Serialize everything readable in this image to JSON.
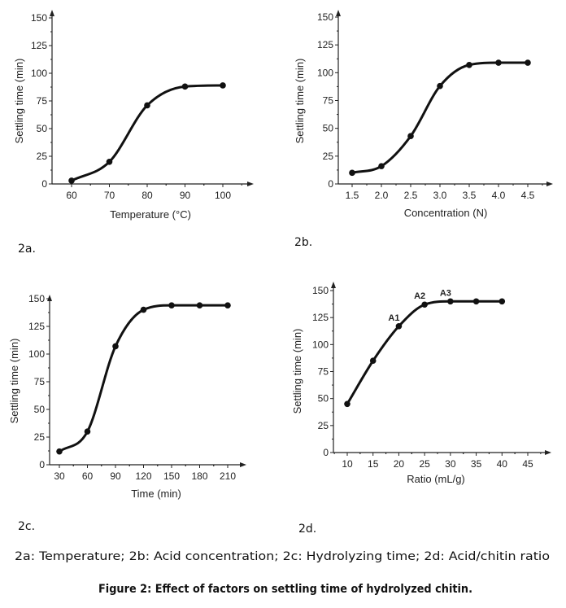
{
  "chart_data": [
    {
      "type": "line",
      "panel_label": "2a.",
      "xlabel": "Temperature (°C)",
      "ylabel": "Settling time (min)",
      "x": [
        60,
        70,
        80,
        90,
        100
      ],
      "values": [
        3,
        20,
        71,
        88,
        89
      ],
      "xticks": [
        "60",
        "70",
        "80",
        "90",
        "100"
      ],
      "yticks": [
        "0",
        "25",
        "50",
        "75",
        "100",
        "125",
        "150"
      ],
      "xlim": [
        55,
        107
      ],
      "ylim": [
        0,
        150
      ],
      "annotations": [],
      "grid": false,
      "color": "#111111"
    },
    {
      "type": "line",
      "panel_label": "2b.",
      "xlabel": "Concentration (N)",
      "ylabel": "Settling time (min)",
      "x": [
        1.5,
        2.0,
        2.5,
        3.0,
        3.5,
        4.0,
        4.5
      ],
      "values": [
        10,
        16,
        43,
        88,
        107,
        109,
        109
      ],
      "xticks": [
        "1.5",
        "2.0",
        "2.5",
        "3.0",
        "3.5",
        "4.0",
        "4.5"
      ],
      "yticks": [
        "0",
        "25",
        "50",
        "75",
        "100",
        "125",
        "150"
      ],
      "xlim": [
        1.25,
        4.95
      ],
      "ylim": [
        0,
        150
      ],
      "annotations": [],
      "grid": false,
      "color": "#111111"
    },
    {
      "type": "line",
      "panel_label": "2c.",
      "xlabel": "Time (min)",
      "ylabel": "Settling time (min)",
      "x": [
        30,
        60,
        90,
        120,
        150,
        180,
        210
      ],
      "values": [
        12,
        30,
        107,
        140,
        144,
        144,
        144
      ],
      "xticks": [
        "30",
        "60",
        "90",
        "120",
        "150",
        "180",
        "210"
      ],
      "yticks": [
        "0",
        "25",
        "50",
        "75",
        "100",
        "125",
        "150"
      ],
      "xlim": [
        20,
        225
      ],
      "ylim": [
        0,
        150
      ],
      "annotations": [],
      "grid": false,
      "color": "#111111"
    },
    {
      "type": "line",
      "panel_label": "2d.",
      "xlabel": "Ratio (mL/g)",
      "ylabel": "Settling time (min)",
      "x": [
        10,
        15,
        20,
        25,
        30,
        35,
        40
      ],
      "values": [
        45,
        85,
        117,
        137,
        140,
        140,
        140
      ],
      "xticks": [
        "10",
        "15",
        "20",
        "25",
        "30",
        "35",
        "40",
        "45"
      ],
      "yticks": [
        "0",
        "25",
        "50",
        "75",
        "100",
        "125",
        "150"
      ],
      "xlim": [
        7.5,
        48.5
      ],
      "ylim": [
        0,
        150
      ],
      "annotations": [
        {
          "text": "A1",
          "x": 20,
          "y": 117
        },
        {
          "text": "A2",
          "x": 25,
          "y": 137
        },
        {
          "text": "A3",
          "x": 30,
          "y": 140
        }
      ],
      "grid": false,
      "color": "#111111"
    }
  ],
  "caption": {
    "legend_line": "2a: Temperature; 2b: Acid concentration; 2c: Hydrolyzing time; 2d: Acid/chitin ratio",
    "title": "Figure 2:  Effect of factors on settling time of hydrolyzed chitin."
  }
}
